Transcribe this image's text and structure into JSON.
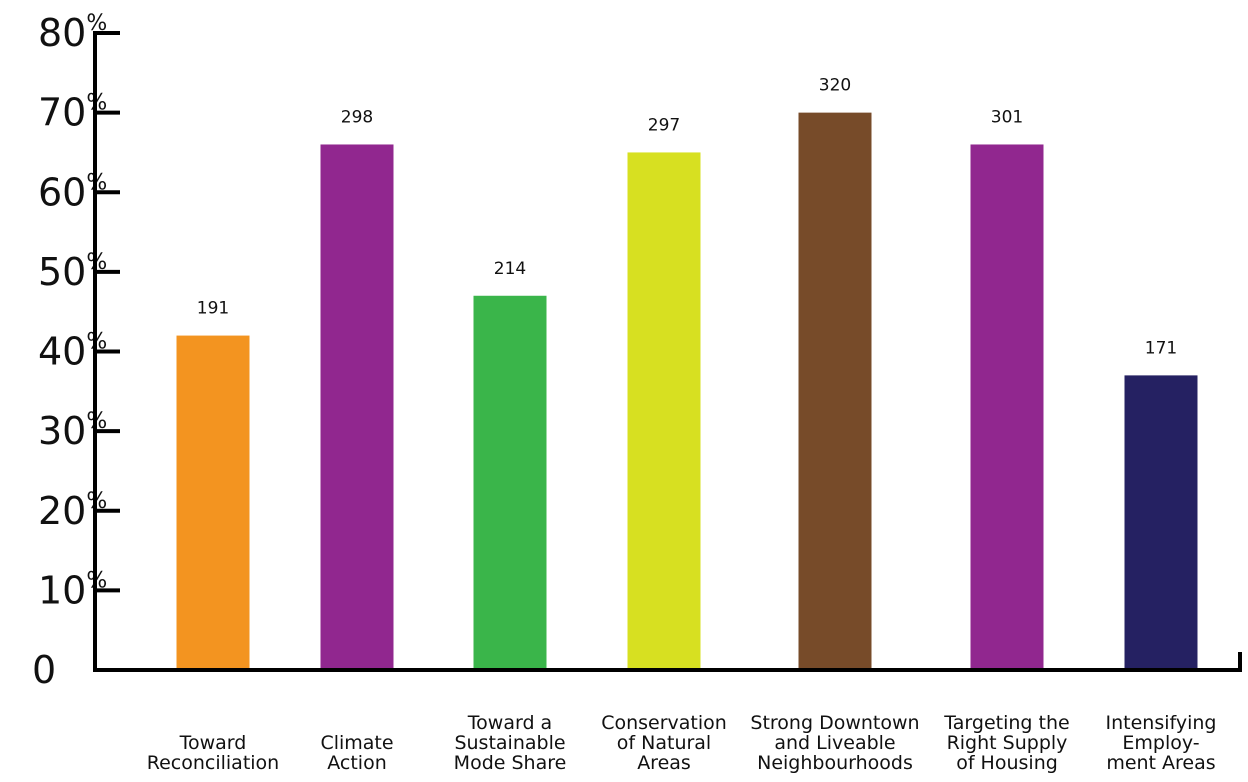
{
  "chart_data": {
    "type": "bar",
    "title": "",
    "xlabel": "",
    "ylabel": "",
    "ylim": [
      0,
      80
    ],
    "yticks": [
      {
        "value": 0,
        "label": "0",
        "suffix": ""
      },
      {
        "value": 10,
        "label": "10",
        "suffix": "%"
      },
      {
        "value": 20,
        "label": "20",
        "suffix": "%"
      },
      {
        "value": 30,
        "label": "30",
        "suffix": "%"
      },
      {
        "value": 40,
        "label": "40",
        "suffix": "%"
      },
      {
        "value": 50,
        "label": "50",
        "suffix": "%"
      },
      {
        "value": 60,
        "label": "60",
        "suffix": "%"
      },
      {
        "value": 70,
        "label": "70",
        "suffix": "%"
      },
      {
        "value": 80,
        "label": "80",
        "suffix": "%"
      }
    ],
    "grid": false,
    "legend": "none",
    "categories": [
      [
        "Toward",
        "Reconciliation"
      ],
      [
        "Climate",
        "Action"
      ],
      [
        "Toward a",
        "Sustainable",
        "Mode Share"
      ],
      [
        "Conservation",
        "of Natural",
        "Areas"
      ],
      [
        "Strong Downtown",
        "and Liveable",
        "Neighbourhoods"
      ],
      [
        "Targeting the",
        "Right Supply",
        "of Housing"
      ],
      [
        "Intensifying",
        "Employ-",
        "ment Areas"
      ]
    ],
    "values": [
      42,
      66,
      47,
      65,
      70,
      66,
      37
    ],
    "data_labels": [
      "191",
      "298",
      "214",
      "297",
      "320",
      "301",
      "171"
    ],
    "colors": [
      "#f39420",
      "#91278f",
      "#3ab54a",
      "#d7e021",
      "#774b29",
      "#91278f",
      "#252162"
    ]
  }
}
